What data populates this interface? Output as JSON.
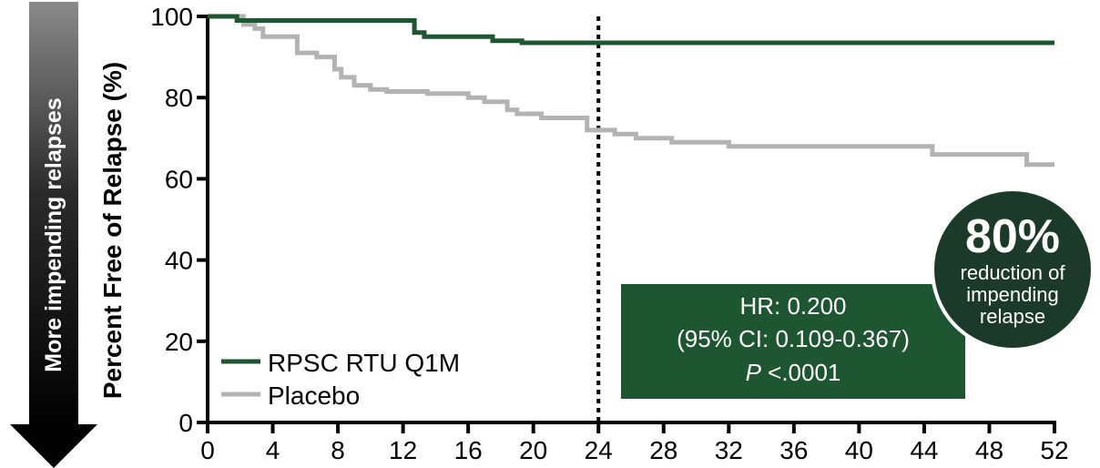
{
  "chart_data": {
    "type": "line",
    "ylabel": "Percent Free of Relapse (%)",
    "side_arrow_label": "More impending relapses",
    "xlim": [
      0,
      52
    ],
    "ylim": [
      0,
      100
    ],
    "x_ticks": [
      0,
      4,
      8,
      12,
      16,
      20,
      24,
      28,
      32,
      36,
      40,
      44,
      48,
      52
    ],
    "y_ticks": [
      0,
      20,
      40,
      60,
      80,
      100
    ],
    "reference_line_x": 24,
    "legend_position": "bottom-left",
    "series": [
      {
        "name": "RPSC RTU Q1M",
        "color": "#1e5631",
        "points": [
          [
            0,
            100
          ],
          [
            1.8,
            100
          ],
          [
            1.8,
            99
          ],
          [
            12.7,
            99
          ],
          [
            12.7,
            96
          ],
          [
            13.3,
            96
          ],
          [
            13.3,
            95
          ],
          [
            17.5,
            95
          ],
          [
            17.5,
            94
          ],
          [
            19.3,
            94
          ],
          [
            19.3,
            93.5
          ],
          [
            52,
            93.5
          ]
        ]
      },
      {
        "name": "Placebo",
        "color": "#b3b3b3",
        "points": [
          [
            0,
            100
          ],
          [
            2.2,
            100
          ],
          [
            2.2,
            98
          ],
          [
            2.9,
            98
          ],
          [
            2.9,
            97
          ],
          [
            3.4,
            97
          ],
          [
            3.4,
            95
          ],
          [
            5.5,
            95
          ],
          [
            5.5,
            91
          ],
          [
            6.7,
            91
          ],
          [
            6.7,
            90
          ],
          [
            7.8,
            90
          ],
          [
            7.8,
            87
          ],
          [
            8.2,
            87
          ],
          [
            8.2,
            85
          ],
          [
            9,
            85
          ],
          [
            9,
            83
          ],
          [
            10,
            83
          ],
          [
            10,
            82
          ],
          [
            11,
            82
          ],
          [
            11,
            81.5
          ],
          [
            13.5,
            81.5
          ],
          [
            13.5,
            81
          ],
          [
            16,
            81
          ],
          [
            16,
            80
          ],
          [
            17,
            80
          ],
          [
            17,
            79
          ],
          [
            18.4,
            79
          ],
          [
            18.4,
            77
          ],
          [
            19,
            77
          ],
          [
            19,
            76
          ],
          [
            20.5,
            76
          ],
          [
            20.5,
            75
          ],
          [
            23.3,
            75
          ],
          [
            23.3,
            72
          ],
          [
            25,
            72
          ],
          [
            25,
            71
          ],
          [
            26.3,
            71
          ],
          [
            26.3,
            70
          ],
          [
            28.5,
            70
          ],
          [
            28.5,
            69
          ],
          [
            32,
            69
          ],
          [
            32,
            68
          ],
          [
            44.5,
            68
          ],
          [
            44.5,
            66
          ],
          [
            50.3,
            66
          ],
          [
            50.3,
            63.5
          ],
          [
            52,
            63.5
          ]
        ]
      }
    ],
    "annotation": {
      "line1": "HR: 0.200",
      "line2": "(95% CI: 0.109-0.367)",
      "p_symbol": "P",
      "p_value": " <.0001",
      "background": "#1e5631"
    },
    "badge": {
      "value": "80%",
      "line1": "reduction of",
      "line2": "impending",
      "line3": "relapse",
      "background": "#1b3a2a"
    }
  }
}
